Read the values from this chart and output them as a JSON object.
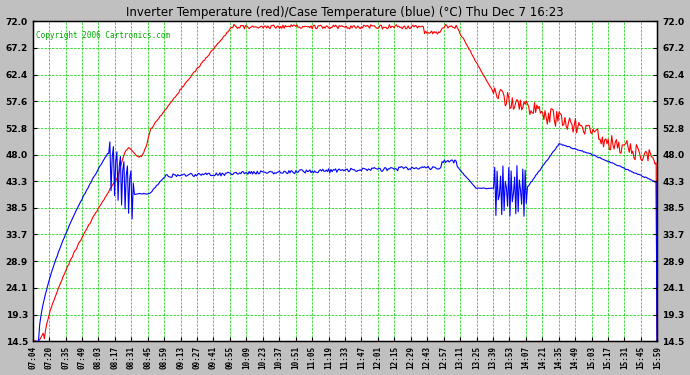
{
  "title": "Inverter Temperature (red)/Case Temperature (blue) (°C) Thu Dec 7 16:23",
  "copyright": "Copyright 2006 Cartronics.com",
  "yticks": [
    14.5,
    19.3,
    24.1,
    28.9,
    33.7,
    38.5,
    43.3,
    48.0,
    52.8,
    57.6,
    62.4,
    67.2,
    72.0
  ],
  "ymin": 14.5,
  "ymax": 72.0,
  "plot_bg_color": "#ffffff",
  "fig_bg_color": "#c0c0c0",
  "grid_color": "#00cc00",
  "xtick_labels": [
    "07:04",
    "07:20",
    "07:35",
    "07:49",
    "08:03",
    "08:17",
    "08:31",
    "08:45",
    "08:59",
    "09:13",
    "09:27",
    "09:41",
    "09:55",
    "10:09",
    "10:23",
    "10:37",
    "10:51",
    "11:05",
    "11:19",
    "11:33",
    "11:47",
    "12:01",
    "12:15",
    "12:29",
    "12:43",
    "12:57",
    "13:11",
    "13:25",
    "13:39",
    "13:53",
    "14:07",
    "14:21",
    "14:35",
    "14:49",
    "15:03",
    "15:17",
    "15:31",
    "15:45",
    "15:59"
  ],
  "line_red_color": "#ff0000",
  "line_blue_color": "#0000ff",
  "line_width": 0.8,
  "copyright_color": "#00aa00"
}
